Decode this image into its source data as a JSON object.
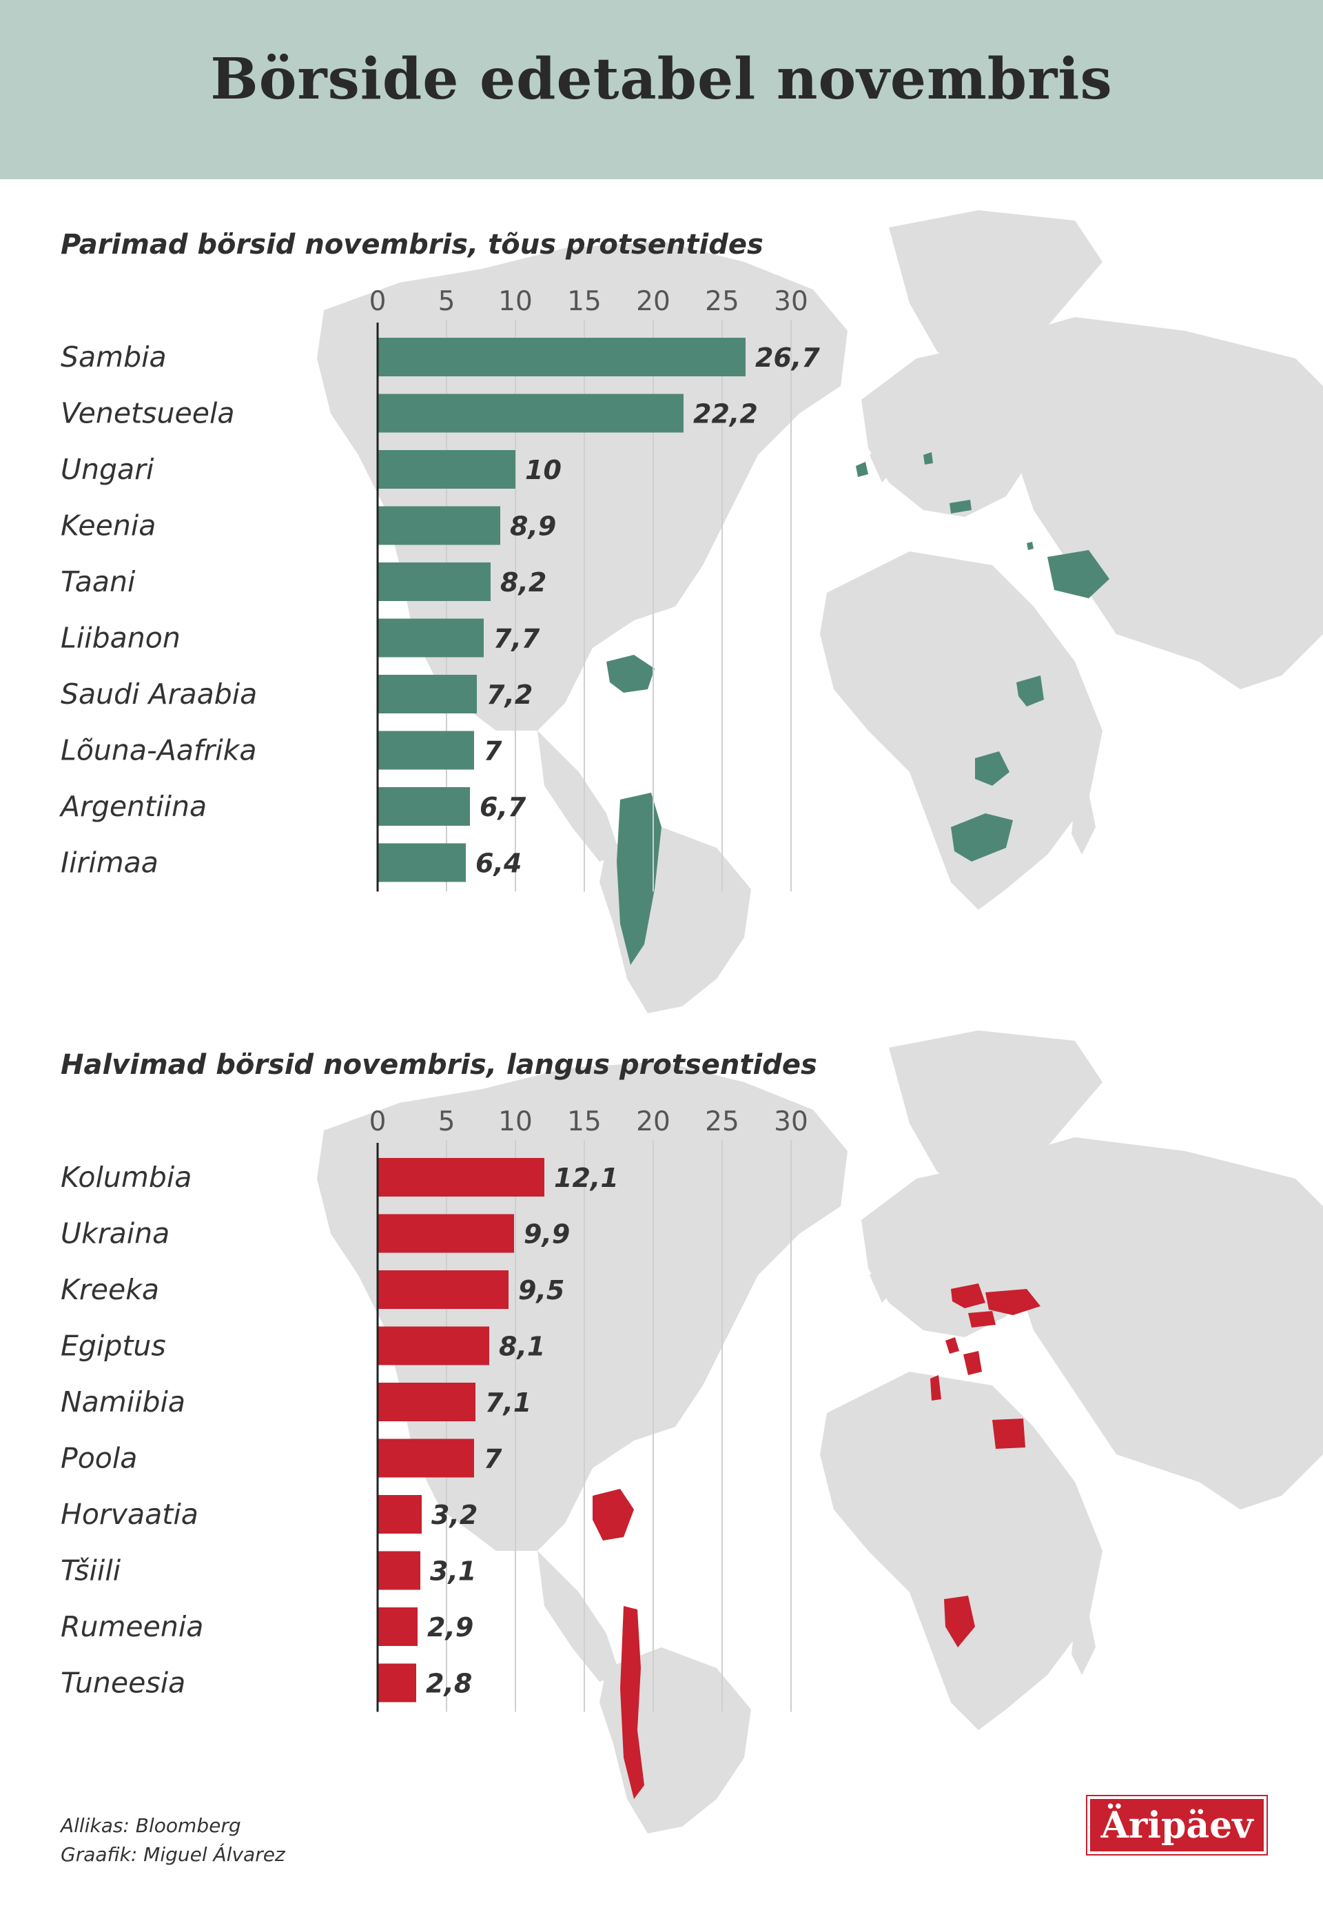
{
  "header": {
    "title": "Börside edetabel novembris"
  },
  "colors": {
    "best_bar": "#4f8776",
    "worst_bar": "#c8202e",
    "map_land": "#dedede",
    "grid": "#cfcfcf",
    "header_bg": "#b8cec6"
  },
  "chart_data": [
    {
      "type": "bar",
      "orientation": "horizontal",
      "title": "Parimad börsid novembris, tõus protsentides",
      "categories": [
        "Sambia",
        "Venetsueela",
        "Ungari",
        "Keenia",
        "Taani",
        "Liibanon",
        "Saudi Araabia",
        "Lõuna-Aafrika",
        "Argentiina",
        "Iirimaa"
      ],
      "values": [
        26.7,
        22.2,
        10,
        8.9,
        8.2,
        7.7,
        7.2,
        7,
        6.7,
        6.4
      ],
      "value_labels": [
        "26,7",
        "22,2",
        "10",
        "8,9",
        "8,2",
        "7,7",
        "7,2",
        "7",
        "6,7",
        "6,4"
      ],
      "xticks": [
        0,
        5,
        10,
        15,
        20,
        25,
        30
      ],
      "xlim": [
        0,
        30
      ],
      "axis_position": "top",
      "grid": true,
      "color": "#4f8776"
    },
    {
      "type": "bar",
      "orientation": "horizontal",
      "title": "Halvimad börsid novembris, langus protsentides",
      "categories": [
        "Kolumbia",
        "Ukraina",
        "Kreeka",
        "Egiptus",
        "Namiibia",
        "Poola",
        "Horvaatia",
        "Tšiili",
        "Rumeenia",
        "Tuneesia"
      ],
      "values": [
        12.1,
        9.9,
        9.5,
        8.1,
        7.1,
        7,
        3.2,
        3.1,
        2.9,
        2.8
      ],
      "value_labels": [
        "12,1",
        "9,9",
        "9,5",
        "8,1",
        "7,1",
        "7",
        "3,2",
        "3,1",
        "2,9",
        "2,8"
      ],
      "xticks": [
        0,
        5,
        10,
        15,
        20,
        25,
        30
      ],
      "xlim": [
        0,
        30
      ],
      "axis_position": "top",
      "grid": true,
      "color": "#c8202e"
    }
  ],
  "footer": {
    "source": "Allikas: Bloomberg",
    "credit": "Graafik: Miguel Álvarez"
  },
  "logo": {
    "text": "Äripäev"
  }
}
